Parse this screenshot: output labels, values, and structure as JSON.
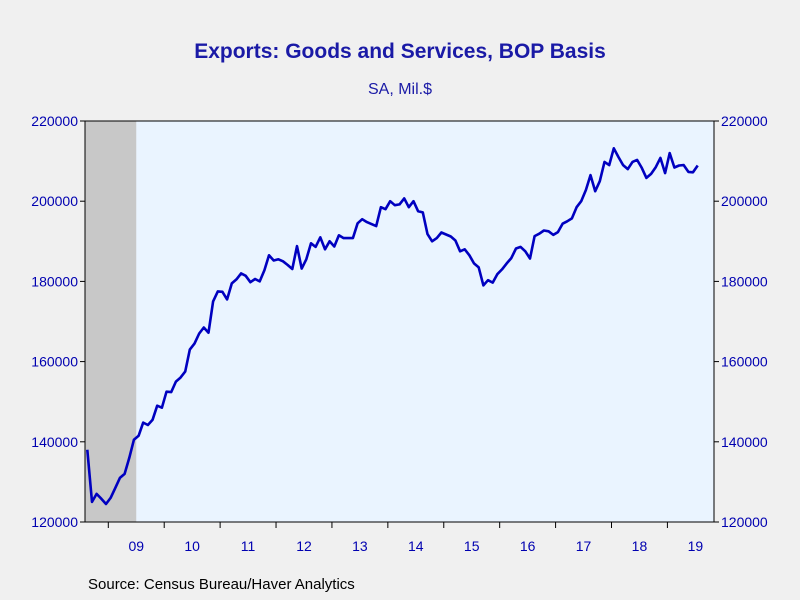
{
  "chart_data": {
    "type": "line",
    "title": "Exports: Goods and Services, BOP Basis",
    "subtitle": "SA, Mil.$",
    "source": "Source:  Census Bureau/Haver Analytics",
    "ylim": [
      120000,
      220000
    ],
    "yticks": [
      "120000",
      "140000",
      "160000",
      "180000",
      "200000",
      "220000"
    ],
    "xlim": [
      "2008-08",
      "2019-10"
    ],
    "x_tick_labels": [
      "09",
      "10",
      "11",
      "12",
      "13",
      "14",
      "15",
      "16",
      "17",
      "18",
      "19"
    ],
    "recession_shading": {
      "start": "2008-08",
      "end": "2009-06",
      "color": "#c8c8c8"
    },
    "grid": false,
    "legend": "none",
    "colors": {
      "line": "#0000c0",
      "plot_bg": "#eaf4ff",
      "page_bg": "#f0f0f0",
      "text": "#1a1aa6"
    },
    "series": [
      {
        "x_start": "2008-08",
        "frequency": "monthly",
        "values": [
          138000,
          125000,
          127000,
          125800,
          124500,
          126000,
          128500,
          131000,
          132000,
          136000,
          140500,
          141500,
          144800,
          144200,
          145500,
          149000,
          148500,
          152500,
          152400,
          155000,
          156000,
          157500,
          163000,
          164500,
          167000,
          168500,
          167200,
          175000,
          177500,
          177400,
          175500,
          179500,
          180500,
          182000,
          181400,
          179800,
          180600,
          180000,
          182800,
          186500,
          185200,
          185500,
          185000,
          184100,
          183100,
          188800,
          183200,
          185500,
          189500,
          188600,
          191000,
          188000,
          190000,
          188700,
          191500,
          190800,
          190800,
          190800,
          194500,
          195500,
          194800,
          194300,
          193800,
          198500,
          198000,
          200000,
          199000,
          199200,
          200700,
          198500,
          200000,
          197500,
          197200,
          191800,
          190000,
          190800,
          192200,
          191700,
          191200,
          190200,
          187500,
          188000,
          186500,
          184500,
          183500,
          179000,
          180300,
          179700,
          181800,
          183000,
          184500,
          185800,
          188200,
          188600,
          187500,
          185700,
          191300,
          191900,
          192700,
          192500,
          191600,
          192300,
          194400,
          195000,
          195700,
          198500,
          200000,
          202800,
          206500,
          202500,
          205000,
          209800,
          209000,
          213200,
          211000,
          209000,
          208000,
          209800,
          210300,
          208300,
          205800,
          206800,
          208500,
          210800,
          207000,
          212000,
          208400,
          208900,
          209000,
          207300,
          207200,
          208900
        ]
      }
    ]
  }
}
